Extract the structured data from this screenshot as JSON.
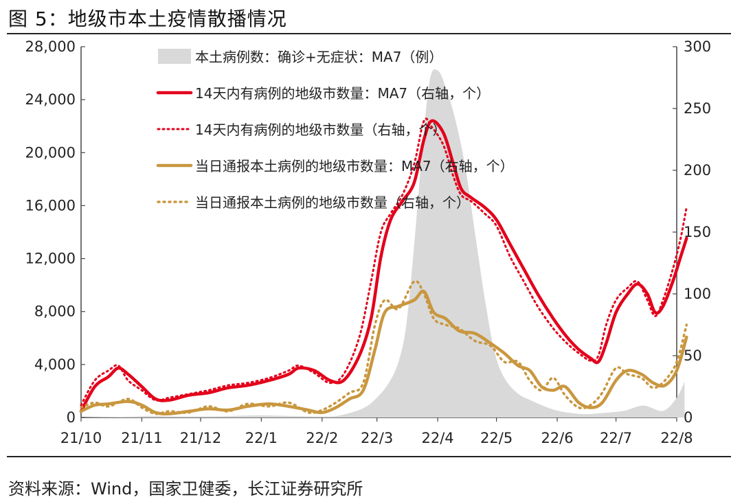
{
  "title": "图 5：地级市本土疫情散播情况",
  "source": "资料来源：Wind，国家卫健委，长江证券研究所",
  "chart_data": {
    "type": "line",
    "x_tick_labels": [
      "21/10",
      "21/11",
      "21/12",
      "22/1",
      "22/2",
      "22/3",
      "22/4",
      "22/5",
      "22/6",
      "22/7",
      "22/8"
    ],
    "x_ticks": [
      "2021-10-01",
      "2021-11-01",
      "2021-12-01",
      "2022-01-01",
      "2022-02-01",
      "2022-03-01",
      "2022-04-01",
      "2022-05-01",
      "2022-06-01",
      "2022-07-01",
      "2022-08-01"
    ],
    "y_left": {
      "min": 0,
      "max": 28000,
      "ticks": [
        0,
        4000,
        8000,
        12000,
        16000,
        20000,
        24000,
        28000
      ],
      "tick_labels": [
        "0",
        "4,000",
        "8,000",
        "12,000",
        "16,000",
        "20,000",
        "24,000",
        "28,000"
      ]
    },
    "y_right": {
      "min": 0,
      "max": 300,
      "ticks": [
        0,
        50,
        100,
        150,
        200,
        250,
        300
      ],
      "tick_labels": [
        "0",
        "50",
        "100",
        "150",
        "200",
        "250",
        "300"
      ]
    },
    "grid": false,
    "legend_position": "top-center",
    "colors": {
      "area": "#d9d9d9",
      "red": "#e3001b",
      "gold": "#c9973f",
      "axis": "#444444"
    },
    "series": [
      {
        "name": "本土病例数：确诊+无症状：MA7（例）",
        "type": "area",
        "axis": "left",
        "points": [
          [
            "2021-10-01",
            0
          ],
          [
            "2021-10-25",
            60
          ],
          [
            "2021-11-05",
            120
          ],
          [
            "2021-11-20",
            80
          ],
          [
            "2021-12-10",
            90
          ],
          [
            "2021-12-30",
            160
          ],
          [
            "2022-01-15",
            120
          ],
          [
            "2022-02-01",
            80
          ],
          [
            "2022-02-10",
            150
          ],
          [
            "2022-02-22",
            700
          ],
          [
            "2022-03-01",
            1500
          ],
          [
            "2022-03-07",
            2600
          ],
          [
            "2022-03-12",
            4200
          ],
          [
            "2022-03-16",
            7000
          ],
          [
            "2022-03-20",
            13000
          ],
          [
            "2022-03-24",
            20000
          ],
          [
            "2022-03-28",
            25500
          ],
          [
            "2022-04-01",
            26200
          ],
          [
            "2022-04-05",
            25000
          ],
          [
            "2022-04-10",
            22500
          ],
          [
            "2022-04-15",
            19000
          ],
          [
            "2022-04-20",
            14000
          ],
          [
            "2022-04-25",
            9000
          ],
          [
            "2022-04-30",
            5000
          ],
          [
            "2022-05-05",
            3000
          ],
          [
            "2022-05-12",
            1800
          ],
          [
            "2022-05-20",
            1200
          ],
          [
            "2022-05-28",
            700
          ],
          [
            "2022-06-05",
            400
          ],
          [
            "2022-06-15",
            250
          ],
          [
            "2022-06-25",
            350
          ],
          [
            "2022-07-05",
            500
          ],
          [
            "2022-07-15",
            900
          ],
          [
            "2022-07-25",
            500
          ],
          [
            "2022-08-01",
            1500
          ],
          [
            "2022-08-05",
            2700
          ]
        ]
      },
      {
        "name": "14天内有病例的地级市数量：MA7（右轴，个）",
        "type": "line",
        "axis": "right",
        "style": "solid-red",
        "points": [
          [
            "2021-10-01",
            5
          ],
          [
            "2021-10-08",
            25
          ],
          [
            "2021-10-15",
            33
          ],
          [
            "2021-10-20",
            40
          ],
          [
            "2021-10-25",
            35
          ],
          [
            "2021-11-01",
            25
          ],
          [
            "2021-11-08",
            15
          ],
          [
            "2021-11-15",
            14
          ],
          [
            "2021-11-25",
            18
          ],
          [
            "2021-12-05",
            20
          ],
          [
            "2021-12-15",
            24
          ],
          [
            "2021-12-25",
            26
          ],
          [
            "2022-01-05",
            30
          ],
          [
            "2022-01-15",
            35
          ],
          [
            "2022-01-20",
            40
          ],
          [
            "2022-01-28",
            38
          ],
          [
            "2022-02-05",
            30
          ],
          [
            "2022-02-12",
            30
          ],
          [
            "2022-02-20",
            50
          ],
          [
            "2022-02-26",
            80
          ],
          [
            "2022-03-03",
            130
          ],
          [
            "2022-03-08",
            160
          ],
          [
            "2022-03-14",
            175
          ],
          [
            "2022-03-20",
            190
          ],
          [
            "2022-03-25",
            225
          ],
          [
            "2022-03-29",
            240
          ],
          [
            "2022-04-04",
            230
          ],
          [
            "2022-04-09",
            205
          ],
          [
            "2022-04-13",
            185
          ],
          [
            "2022-04-18",
            178
          ],
          [
            "2022-04-25",
            170
          ],
          [
            "2022-05-01",
            160
          ],
          [
            "2022-05-08",
            140
          ],
          [
            "2022-05-15",
            120
          ],
          [
            "2022-05-22",
            100
          ],
          [
            "2022-05-30",
            80
          ],
          [
            "2022-06-06",
            65
          ],
          [
            "2022-06-12",
            55
          ],
          [
            "2022-06-18",
            48
          ],
          [
            "2022-06-22",
            45
          ],
          [
            "2022-06-26",
            60
          ],
          [
            "2022-07-01",
            85
          ],
          [
            "2022-07-07",
            100
          ],
          [
            "2022-07-12",
            108
          ],
          [
            "2022-07-17",
            100
          ],
          [
            "2022-07-21",
            85
          ],
          [
            "2022-07-25",
            90
          ],
          [
            "2022-07-30",
            110
          ],
          [
            "2022-08-03",
            130
          ],
          [
            "2022-08-06",
            145
          ]
        ]
      },
      {
        "name": "14天内有病例的地级市数量（右轴，个）",
        "type": "line",
        "axis": "right",
        "style": "dotted-red",
        "points": [
          [
            "2021-10-01",
            10
          ],
          [
            "2021-10-08",
            30
          ],
          [
            "2021-10-15",
            38
          ],
          [
            "2021-10-20",
            42
          ],
          [
            "2021-10-25",
            30
          ],
          [
            "2021-11-01",
            22
          ],
          [
            "2021-11-08",
            14
          ],
          [
            "2021-11-15",
            16
          ],
          [
            "2021-11-25",
            19
          ],
          [
            "2021-12-05",
            22
          ],
          [
            "2021-12-15",
            26
          ],
          [
            "2021-12-25",
            28
          ],
          [
            "2022-01-05",
            32
          ],
          [
            "2022-01-15",
            38
          ],
          [
            "2022-01-20",
            42
          ],
          [
            "2022-01-28",
            36
          ],
          [
            "2022-02-05",
            28
          ],
          [
            "2022-02-12",
            35
          ],
          [
            "2022-02-20",
            65
          ],
          [
            "2022-02-26",
            110
          ],
          [
            "2022-03-03",
            150
          ],
          [
            "2022-03-08",
            165
          ],
          [
            "2022-03-14",
            180
          ],
          [
            "2022-03-20",
            205
          ],
          [
            "2022-03-25",
            240
          ],
          [
            "2022-03-29",
            235
          ],
          [
            "2022-04-04",
            220
          ],
          [
            "2022-04-09",
            195
          ],
          [
            "2022-04-13",
            180
          ],
          [
            "2022-04-18",
            175
          ],
          [
            "2022-04-25",
            165
          ],
          [
            "2022-05-01",
            155
          ],
          [
            "2022-05-08",
            130
          ],
          [
            "2022-05-15",
            110
          ],
          [
            "2022-05-22",
            90
          ],
          [
            "2022-05-30",
            72
          ],
          [
            "2022-06-06",
            60
          ],
          [
            "2022-06-12",
            52
          ],
          [
            "2022-06-18",
            46
          ],
          [
            "2022-06-22",
            50
          ],
          [
            "2022-06-26",
            75
          ],
          [
            "2022-07-01",
            95
          ],
          [
            "2022-07-07",
            105
          ],
          [
            "2022-07-12",
            110
          ],
          [
            "2022-07-17",
            95
          ],
          [
            "2022-07-21",
            82
          ],
          [
            "2022-07-25",
            95
          ],
          [
            "2022-07-30",
            120
          ],
          [
            "2022-08-03",
            145
          ],
          [
            "2022-08-06",
            170
          ]
        ]
      },
      {
        "name": "当日通报本土病例的地级市数量：MA7（右轴，个）",
        "type": "line",
        "axis": "right",
        "style": "solid-gold",
        "points": [
          [
            "2021-10-01",
            5
          ],
          [
            "2021-10-08",
            10
          ],
          [
            "2021-10-15",
            11
          ],
          [
            "2021-10-25",
            13
          ],
          [
            "2021-11-01",
            10
          ],
          [
            "2021-11-08",
            4
          ],
          [
            "2021-11-15",
            3
          ],
          [
            "2021-11-25",
            5
          ],
          [
            "2021-12-05",
            7
          ],
          [
            "2021-12-15",
            6
          ],
          [
            "2021-12-25",
            9
          ],
          [
            "2022-01-05",
            11
          ],
          [
            "2022-01-15",
            9
          ],
          [
            "2022-01-25",
            6
          ],
          [
            "2022-02-01",
            4
          ],
          [
            "2022-02-08",
            8
          ],
          [
            "2022-02-15",
            15
          ],
          [
            "2022-02-22",
            22
          ],
          [
            "2022-02-28",
            55
          ],
          [
            "2022-03-05",
            85
          ],
          [
            "2022-03-12",
            90
          ],
          [
            "2022-03-20",
            95
          ],
          [
            "2022-03-25",
            102
          ],
          [
            "2022-03-30",
            85
          ],
          [
            "2022-04-05",
            80
          ],
          [
            "2022-04-12",
            70
          ],
          [
            "2022-04-20",
            68
          ],
          [
            "2022-04-28",
            60
          ],
          [
            "2022-05-05",
            52
          ],
          [
            "2022-05-12",
            42
          ],
          [
            "2022-05-18",
            38
          ],
          [
            "2022-05-24",
            25
          ],
          [
            "2022-05-30",
            22
          ],
          [
            "2022-06-05",
            25
          ],
          [
            "2022-06-12",
            12
          ],
          [
            "2022-06-18",
            8
          ],
          [
            "2022-06-24",
            12
          ],
          [
            "2022-07-01",
            30
          ],
          [
            "2022-07-07",
            38
          ],
          [
            "2022-07-14",
            35
          ],
          [
            "2022-07-20",
            28
          ],
          [
            "2022-07-26",
            26
          ],
          [
            "2022-08-01",
            38
          ],
          [
            "2022-08-06",
            65
          ]
        ]
      },
      {
        "name": "当日通报本土病例的地级市数量（右轴，个）",
        "type": "line",
        "axis": "right",
        "style": "dotted-gold",
        "points": [
          [
            "2021-10-01",
            8
          ],
          [
            "2021-10-08",
            12
          ],
          [
            "2021-10-15",
            9
          ],
          [
            "2021-10-25",
            15
          ],
          [
            "2021-11-01",
            8
          ],
          [
            "2021-11-08",
            3
          ],
          [
            "2021-11-15",
            5
          ],
          [
            "2021-11-25",
            4
          ],
          [
            "2021-12-05",
            9
          ],
          [
            "2021-12-15",
            5
          ],
          [
            "2021-12-25",
            11
          ],
          [
            "2022-01-05",
            9
          ],
          [
            "2022-01-15",
            12
          ],
          [
            "2022-01-25",
            4
          ],
          [
            "2022-02-01",
            6
          ],
          [
            "2022-02-08",
            12
          ],
          [
            "2022-02-15",
            20
          ],
          [
            "2022-02-22",
            28
          ],
          [
            "2022-02-28",
            75
          ],
          [
            "2022-03-05",
            95
          ],
          [
            "2022-03-12",
            88
          ],
          [
            "2022-03-20",
            110
          ],
          [
            "2022-03-25",
            100
          ],
          [
            "2022-03-30",
            80
          ],
          [
            "2022-04-05",
            75
          ],
          [
            "2022-04-12",
            72
          ],
          [
            "2022-04-20",
            62
          ],
          [
            "2022-04-28",
            58
          ],
          [
            "2022-05-05",
            45
          ],
          [
            "2022-05-12",
            45
          ],
          [
            "2022-05-18",
            30
          ],
          [
            "2022-05-24",
            22
          ],
          [
            "2022-05-30",
            32
          ],
          [
            "2022-06-05",
            18
          ],
          [
            "2022-06-12",
            8
          ],
          [
            "2022-06-18",
            10
          ],
          [
            "2022-06-24",
            20
          ],
          [
            "2022-07-01",
            40
          ],
          [
            "2022-07-07",
            35
          ],
          [
            "2022-07-14",
            32
          ],
          [
            "2022-07-20",
            24
          ],
          [
            "2022-07-26",
            30
          ],
          [
            "2022-08-01",
            45
          ],
          [
            "2022-08-06",
            75
          ]
        ]
      }
    ]
  }
}
